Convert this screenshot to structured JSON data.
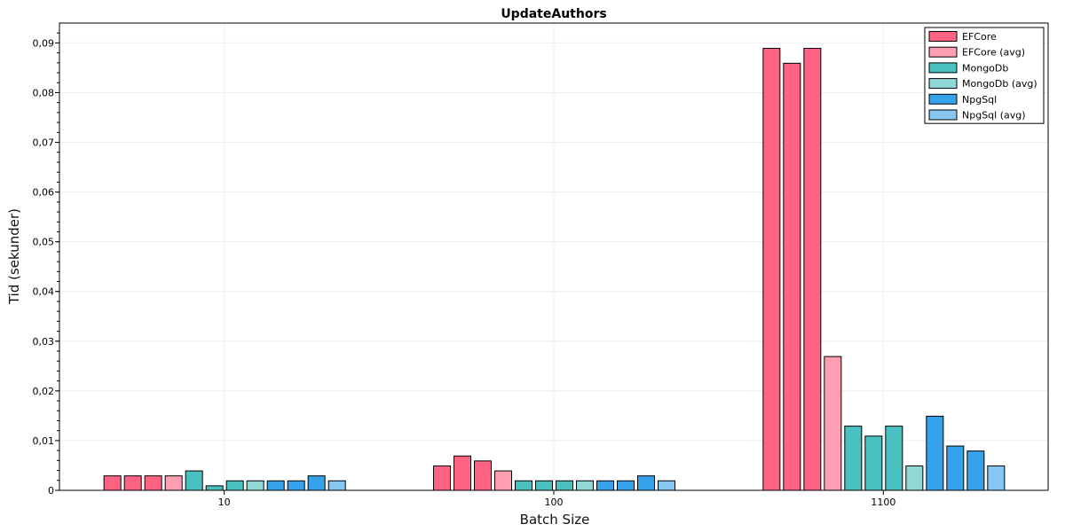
{
  "chart_data": {
    "type": "bar",
    "title": "UpdateAuthors",
    "xlabel": "Batch Size",
    "ylabel": "Tid (sekunder)",
    "ylim": [
      0,
      0.094
    ],
    "yticks": [
      "0",
      "0,01",
      "0,02",
      "0,03",
      "0,04",
      "0,05",
      "0,06",
      "0,07",
      "0,08",
      "0,09"
    ],
    "grid": true,
    "legend_position": "top-right",
    "series": [
      {
        "name": "EFCore",
        "color": "#ff6384"
      },
      {
        "name": "EFCore (avg)",
        "color": "#ff9eb1"
      },
      {
        "name": "MongoDb",
        "color": "#4bc0c0"
      },
      {
        "name": "MongoDb (avg)",
        "color": "#8fd8d6"
      },
      {
        "name": "NpgSql",
        "color": "#36a2eb"
      },
      {
        "name": "NpgSql (avg)",
        "color": "#86c6f1"
      }
    ],
    "groups": [
      {
        "label": "10",
        "bars": [
          {
            "series": 0,
            "value": 0.003
          },
          {
            "series": 0,
            "value": 0.003
          },
          {
            "series": 0,
            "value": 0.003
          },
          {
            "series": 1,
            "value": 0.003
          },
          {
            "series": 2,
            "value": 0.004
          },
          {
            "series": 2,
            "value": 0.001
          },
          {
            "series": 2,
            "value": 0.002
          },
          {
            "series": 3,
            "value": 0.002
          },
          {
            "series": 4,
            "value": 0.002
          },
          {
            "series": 4,
            "value": 0.002
          },
          {
            "series": 4,
            "value": 0.003
          },
          {
            "series": 5,
            "value": 0.002
          }
        ]
      },
      {
        "label": "100",
        "bars": [
          {
            "series": 0,
            "value": 0.005
          },
          {
            "series": 0,
            "value": 0.007
          },
          {
            "series": 0,
            "value": 0.006
          },
          {
            "series": 1,
            "value": 0.004
          },
          {
            "series": 2,
            "value": 0.002
          },
          {
            "series": 2,
            "value": 0.002
          },
          {
            "series": 2,
            "value": 0.002
          },
          {
            "series": 3,
            "value": 0.002
          },
          {
            "series": 4,
            "value": 0.002
          },
          {
            "series": 4,
            "value": 0.002
          },
          {
            "series": 4,
            "value": 0.003
          },
          {
            "series": 5,
            "value": 0.002
          }
        ]
      },
      {
        "label": "1100",
        "bars": [
          {
            "series": 0,
            "value": 0.089
          },
          {
            "series": 0,
            "value": 0.086
          },
          {
            "series": 0,
            "value": 0.089
          },
          {
            "series": 1,
            "value": 0.027
          },
          {
            "series": 2,
            "value": 0.013
          },
          {
            "series": 2,
            "value": 0.011
          },
          {
            "series": 2,
            "value": 0.013
          },
          {
            "series": 3,
            "value": 0.005
          },
          {
            "series": 4,
            "value": 0.015
          },
          {
            "series": 4,
            "value": 0.009
          },
          {
            "series": 4,
            "value": 0.008
          },
          {
            "series": 5,
            "value": 0.005
          }
        ]
      }
    ]
  }
}
